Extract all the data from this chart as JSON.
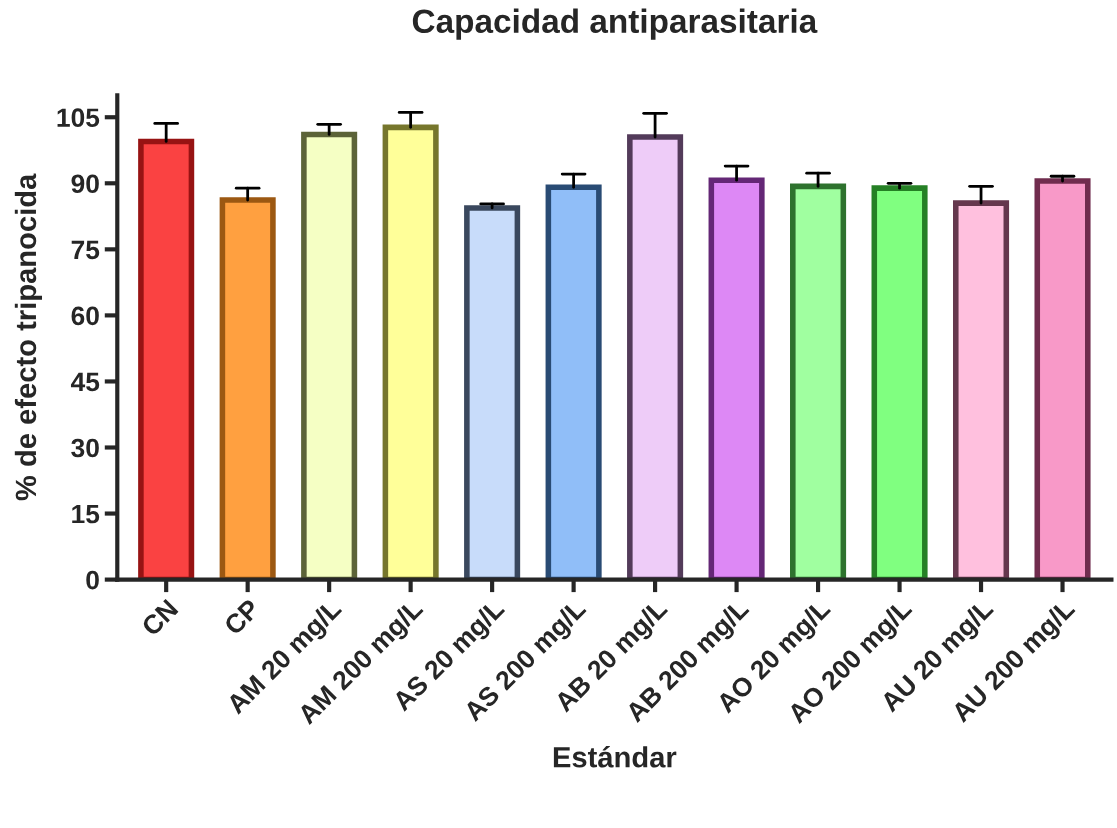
{
  "chart_data": {
    "type": "bar",
    "title": "Capacidad antiparasitaria",
    "xlabel": "Estándar",
    "ylabel": "% de efecto tripanocida",
    "categories": [
      "CN",
      "CP",
      "AM 20 mg/L",
      "AM 200 mg/L",
      "AS 20 mg/L",
      "AS 200 mg/L",
      "AB 20 mg/L",
      "AB 200 mg/L",
      "AO 20 mg/L",
      "AO 200 mg/L",
      "AU 20 mg/L",
      "AU 200 mg/L"
    ],
    "values": [
      99.5,
      86.2,
      101.1,
      102.7,
      84.4,
      89.1,
      100.5,
      90.7,
      89.3,
      88.9,
      85.5,
      90.5
    ],
    "errors": [
      [
        99.5,
        103.6
      ],
      [
        86.2,
        88.9
      ],
      [
        101.1,
        103.4
      ],
      [
        102.7,
        106.1
      ],
      [
        84.4,
        85.3
      ],
      [
        89.1,
        92.1
      ],
      [
        100.5,
        105.9
      ],
      [
        90.7,
        93.9
      ],
      [
        89.3,
        92.3
      ],
      [
        88.9,
        90.0
      ],
      [
        85.5,
        89.3
      ],
      [
        90.5,
        91.6
      ]
    ],
    "colors": [
      "#fa4242",
      "#ffa040",
      "#f5ffc4",
      "#ffff99",
      "#c8dcfa",
      "#90bef8",
      "#eeccf8",
      "#dd88f5",
      "#a0ffa0",
      "#80ff80",
      "#ffc0de",
      "#f899c8"
    ],
    "ylim": [
      0,
      110
    ],
    "yticks": [
      0,
      15,
      30,
      45,
      60,
      75,
      90,
      105
    ],
    "grid": false,
    "legend": false
  }
}
